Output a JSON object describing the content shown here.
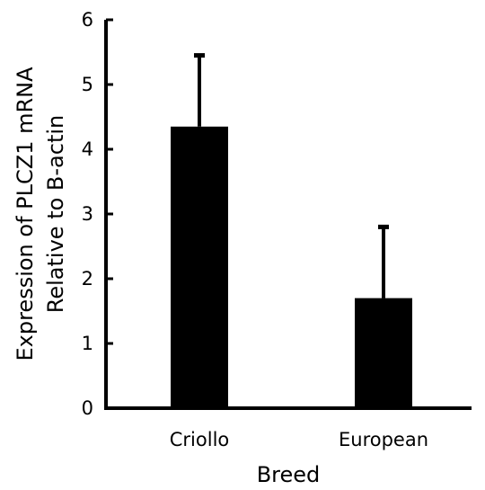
{
  "chart_data": {
    "type": "bar",
    "categories": [
      "Criollo",
      "European"
    ],
    "series": [
      {
        "values": [
          4.35,
          1.7
        ],
        "error_upper": [
          1.1,
          1.1
        ]
      }
    ],
    "xlabel": "Breed",
    "ylabel_lines": [
      "Expression of PLCZ1 mRNA",
      "Relative to B-actin"
    ],
    "ylim": [
      0,
      6
    ],
    "yticks": [
      "0",
      "1",
      "2",
      "3",
      "4",
      "5",
      "6"
    ],
    "grid": false,
    "legend": "none",
    "bar_color": "#000000"
  }
}
